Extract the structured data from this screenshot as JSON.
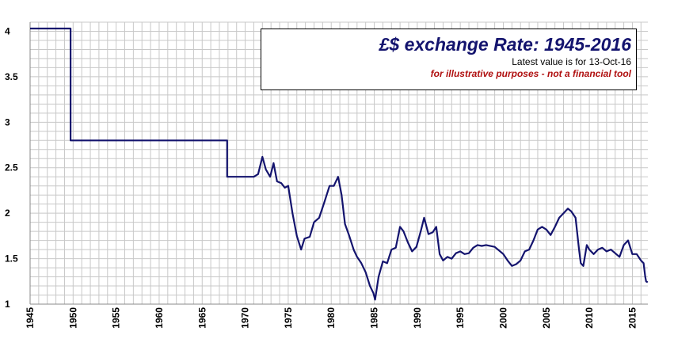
{
  "chart_data": {
    "type": "line",
    "title": "£$ exchange Rate: 1945-2016",
    "subtitle": "Latest value is for 13-Oct-16",
    "note": "for illustrative purposes - not a financial tool",
    "xlim": [
      1945,
      2016.8
    ],
    "ylim": [
      1,
      4.1
    ],
    "x_ticks": [
      1945,
      1950,
      1955,
      1960,
      1965,
      1970,
      1975,
      1980,
      1985,
      1990,
      1995,
      2000,
      2005,
      2010,
      2015
    ],
    "x_tick_labels": [
      "1945",
      "1950",
      "1955",
      "1960",
      "1965",
      "1970",
      "1975",
      "1980",
      "1985",
      "1990",
      "1995",
      "2000",
      "2005",
      "2010",
      "2015"
    ],
    "y_ticks": [
      1,
      1.5,
      2,
      2.5,
      3,
      3.5,
      4
    ],
    "y_tick_labels": [
      "1",
      "1.5",
      "2",
      "2.5",
      "3",
      "3.5",
      "4"
    ],
    "grid": true,
    "colors": {
      "line": "#14146e",
      "grid": "#c8c8c8",
      "title": "#14146e",
      "note": "#b01010"
    },
    "series": [
      {
        "x": [
          1945,
          1949.7,
          1949.7,
          1967.9,
          1967.9,
          1971,
          1971.5,
          1972,
          1972.4,
          1972.9,
          1973.3,
          1973.7,
          1974.2,
          1974.6,
          1975,
          1975.5,
          1976,
          1976.5,
          1976.9,
          1977.5,
          1978,
          1978.6,
          1979.2,
          1979.8,
          1980.3,
          1980.8,
          1981.2,
          1981.6,
          1982.1,
          1982.6,
          1983,
          1983.5,
          1984,
          1984.5,
          1984.9,
          1985.1,
          1985.5,
          1986,
          1986.5,
          1987,
          1987.5,
          1988,
          1988.4,
          1988.9,
          1989.4,
          1989.9,
          1990.4,
          1990.8,
          1991.3,
          1991.8,
          1992.2,
          1992.6,
          1993,
          1993.5,
          1994,
          1994.5,
          1995,
          1995.5,
          1996,
          1996.5,
          1997,
          1997.5,
          1998,
          1999,
          2000,
          2000.5,
          2001,
          2001.5,
          2002,
          2002.5,
          2003,
          2003.5,
          2004,
          2004.5,
          2005,
          2005.5,
          2006,
          2006.5,
          2007,
          2007.5,
          2007.9,
          2008.4,
          2008.8,
          2009,
          2009.3,
          2009.7,
          2010,
          2010.5,
          2011,
          2011.5,
          2012,
          2012.5,
          2013,
          2013.5,
          2014,
          2014.5,
          2015,
          2015.5,
          2016,
          2016.3,
          2016.5,
          2016.6,
          2016.78
        ],
        "y": [
          4.03,
          4.03,
          2.8,
          2.8,
          2.4,
          2.4,
          2.43,
          2.62,
          2.48,
          2.4,
          2.55,
          2.35,
          2.33,
          2.28,
          2.3,
          2.0,
          1.75,
          1.6,
          1.72,
          1.74,
          1.9,
          1.95,
          2.12,
          2.3,
          2.3,
          2.4,
          2.2,
          1.88,
          1.75,
          1.6,
          1.52,
          1.45,
          1.35,
          1.2,
          1.12,
          1.05,
          1.3,
          1.47,
          1.45,
          1.6,
          1.62,
          1.85,
          1.8,
          1.68,
          1.58,
          1.63,
          1.8,
          1.95,
          1.77,
          1.79,
          1.85,
          1.55,
          1.48,
          1.52,
          1.5,
          1.56,
          1.58,
          1.55,
          1.56,
          1.62,
          1.65,
          1.64,
          1.65,
          1.63,
          1.55,
          1.48,
          1.42,
          1.44,
          1.48,
          1.58,
          1.6,
          1.7,
          1.82,
          1.85,
          1.82,
          1.76,
          1.85,
          1.95,
          2.0,
          2.05,
          2.02,
          1.95,
          1.6,
          1.45,
          1.42,
          1.65,
          1.6,
          1.55,
          1.6,
          1.62,
          1.58,
          1.6,
          1.56,
          1.52,
          1.65,
          1.7,
          1.55,
          1.55,
          1.48,
          1.45,
          1.3,
          1.25,
          1.24
        ]
      }
    ]
  }
}
